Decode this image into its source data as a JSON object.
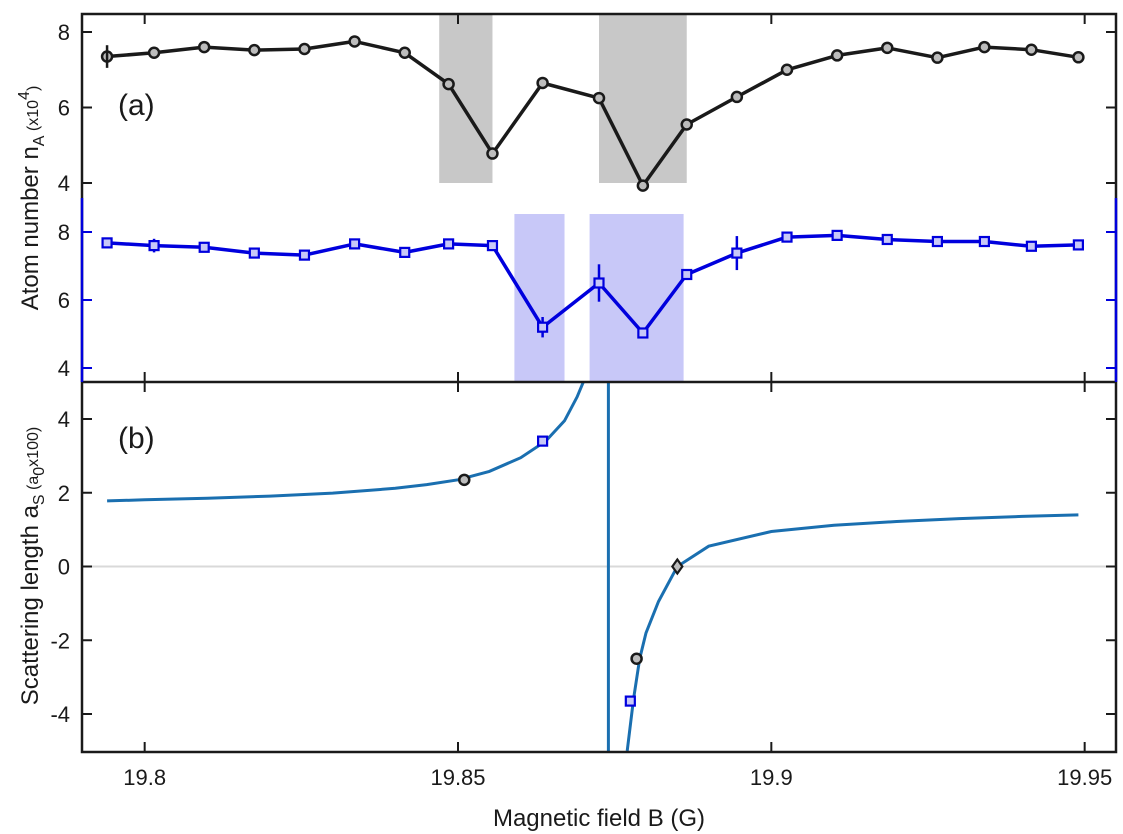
{
  "chart_data": [
    {
      "panel": "(a)",
      "type": "line",
      "ylabel": "Atom number n",
      "ylabel_sub": "A",
      "ylabel_unit_pre": "(x10",
      "ylabel_unit_sup": "4",
      "ylabel_unit_post": ")",
      "axes": [
        {
          "id": "upper",
          "color": "#1a1a1a",
          "ylim": [
            3.5,
            8.5
          ],
          "ticks": [
            4,
            6,
            8
          ],
          "tick_labels": [
            "4",
            "6",
            "8"
          ],
          "bands": [
            [
              19.847,
              19.8555
            ],
            [
              19.8725,
              19.8865
            ]
          ],
          "band_color": "#c8c8c8",
          "series": {
            "marker": "circle",
            "x": [
              19.794,
              19.8015,
              19.8095,
              19.8175,
              19.8255,
              19.8335,
              19.8415,
              19.8485,
              19.8555,
              19.8635,
              19.8725,
              19.8795,
              19.8865,
              19.8945,
              19.9025,
              19.9105,
              19.9185,
              19.9265,
              19.934,
              19.9415,
              19.949
            ],
            "y": [
              7.35,
              7.45,
              7.6,
              7.52,
              7.55,
              7.75,
              7.45,
              6.62,
              4.78,
              6.65,
              6.25,
              3.93,
              5.55,
              6.28,
              7.0,
              7.38,
              7.58,
              7.32,
              7.6,
              7.53,
              7.33
            ]
          }
        },
        {
          "id": "lower",
          "color": "#0000dd",
          "ylim": [
            3.5,
            9.0
          ],
          "ticks": [
            4,
            6,
            8
          ],
          "tick_labels": [
            "4",
            "6",
            "8"
          ],
          "bands": [
            [
              19.859,
              19.867
            ],
            [
              19.871,
              19.886
            ]
          ],
          "band_color": "#c8c8f8",
          "series": {
            "marker": "square",
            "x": [
              19.794,
              19.8015,
              19.8095,
              19.8175,
              19.8255,
              19.8335,
              19.8415,
              19.8485,
              19.8555,
              19.8635,
              19.8725,
              19.8795,
              19.8865,
              19.8945,
              19.9025,
              19.9105,
              19.9185,
              19.9265,
              19.934,
              19.9415,
              19.949
            ],
            "y": [
              7.68,
              7.6,
              7.55,
              7.38,
              7.32,
              7.65,
              7.4,
              7.65,
              7.6,
              5.2,
              6.5,
              5.03,
              6.75,
              7.38,
              7.85,
              7.9,
              7.78,
              7.72,
              7.72,
              7.58,
              7.62
            ],
            "err": [
              0.15,
              0.2,
              0.1,
              0.1,
              0.1,
              0.1,
              0.15,
              0.15,
              0.1,
              0.3,
              0.55,
              0.1,
              0.1,
              0.5,
              0.15,
              0.1,
              0.1,
              0.1,
              0.1,
              0.15,
              0.1
            ]
          }
        }
      ]
    },
    {
      "panel": "(b)",
      "type": "line",
      "xlabel": "Magnetic field B (G)",
      "xlim": [
        19.79,
        19.955
      ],
      "xticks": [
        19.8,
        19.85,
        19.9,
        19.95
      ],
      "xtick_labels": [
        "19.8",
        "19.85",
        "19.9",
        "19.95"
      ],
      "ylabel": "Scattering length a",
      "ylabel_sub": "S",
      "ylabel_unit_pre": "(a",
      "ylabel_unit_sub": "0",
      "ylabel_unit_post": "x100)",
      "ylim": [
        -5,
        5
      ],
      "yticks": [
        -4,
        -2,
        0,
        2,
        4
      ],
      "ytick_labels": [
        "-4",
        "-2",
        "0",
        "2",
        "4"
      ],
      "curve_color": "#1a6fb0",
      "zero_line_color": "#d9d9d9",
      "resonance_B": 19.874,
      "curve": {
        "x": [
          19.794,
          19.8,
          19.81,
          19.82,
          19.83,
          19.84,
          19.845,
          19.85,
          19.855,
          19.86,
          19.864,
          19.867,
          19.869,
          19.87,
          19.877,
          19.878,
          19.879,
          19.88,
          19.882,
          19.885,
          19.89,
          19.9,
          19.91,
          19.92,
          19.93,
          19.94,
          19.949
        ],
        "y": [
          1.78,
          1.81,
          1.85,
          1.91,
          1.99,
          2.12,
          2.22,
          2.35,
          2.58,
          2.95,
          3.4,
          3.95,
          4.6,
          5.0,
          -5.0,
          -3.6,
          -2.5,
          -1.8,
          -0.95,
          0.0,
          0.55,
          0.95,
          1.12,
          1.22,
          1.3,
          1.36,
          1.4
        ]
      },
      "markers": [
        {
          "shape": "circle",
          "color": "#1a1a1a",
          "x": 19.851,
          "y": 2.35
        },
        {
          "shape": "square",
          "color": "#0000dd",
          "x": 19.8635,
          "y": 3.4
        },
        {
          "shape": "square",
          "color": "#0000dd",
          "x": 19.8775,
          "y": -3.65
        },
        {
          "shape": "circle",
          "color": "#1a1a1a",
          "x": 19.8785,
          "y": -2.5
        },
        {
          "shape": "diamond",
          "color": "#1a1a1a",
          "x": 19.885,
          "y": 0.0
        }
      ]
    }
  ]
}
